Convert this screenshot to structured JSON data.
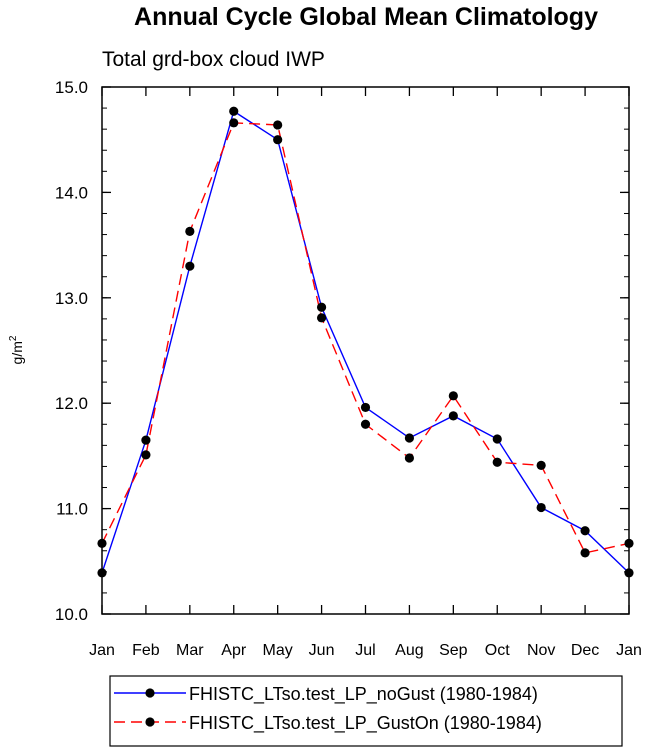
{
  "chart_data": {
    "type": "line",
    "title": "Annual Cycle Global Mean Climatology",
    "subtitle": "Total grd-box cloud IWP",
    "ylabel": "g/m",
    "ylabel_sup": "2",
    "xlabel": "",
    "ylim": [
      10.0,
      15.0
    ],
    "y_ticks": [
      "10.0",
      "11.0",
      "12.0",
      "13.0",
      "14.0",
      "15.0"
    ],
    "categories": [
      "Jan",
      "Feb",
      "Mar",
      "Apr",
      "May",
      "Jun",
      "Jul",
      "Aug",
      "Sep",
      "Oct",
      "Nov",
      "Dec",
      "Jan"
    ],
    "series": [
      {
        "name": "FHISTC_LTso.test_LP_noGust (1980-1984)",
        "color": "#0000ff",
        "dash": "solid",
        "values": [
          10.39,
          11.65,
          13.3,
          14.77,
          14.5,
          12.91,
          11.96,
          11.67,
          11.88,
          11.66,
          11.01,
          10.79,
          10.39
        ]
      },
      {
        "name": "FHISTC_LTso.test_LP_GustOn (1980-1984)",
        "color": "#ff0000",
        "dash": "dashed",
        "values": [
          10.67,
          11.51,
          13.63,
          14.66,
          14.64,
          12.81,
          11.8,
          11.48,
          12.07,
          11.44,
          11.41,
          10.58,
          10.67
        ]
      }
    ]
  }
}
